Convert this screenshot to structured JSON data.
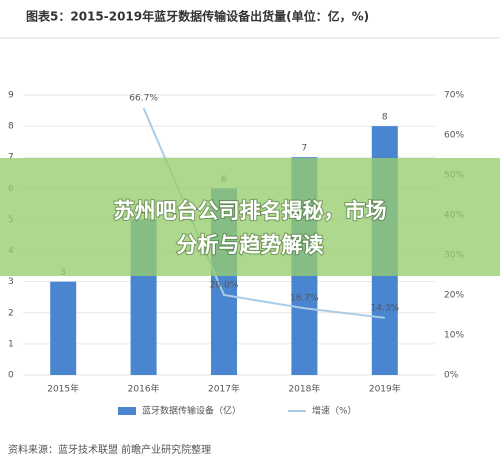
{
  "chart_data": {
    "type": "bar-line",
    "title": "图表5：2015-2019年蓝牙数据传输设备出货量(单位：亿，%)",
    "categories": [
      "2015年",
      "2016年",
      "2017年",
      "2018年",
      "2019年"
    ],
    "series": [
      {
        "name": "蓝牙数据传输设备（亿）",
        "type": "bar",
        "color": "#4a86d0",
        "values": [
          3,
          5,
          6,
          7,
          8
        ]
      },
      {
        "name": "增速（%）",
        "type": "line",
        "color": "#a9cde8",
        "axis": "y2",
        "values": [
          null,
          66.7,
          20,
          16.7,
          14.3
        ],
        "value_labels": [
          null,
          "66.7%",
          "20.0%",
          "16.7%",
          "14.3%"
        ]
      }
    ],
    "ylim": [
      0,
      9
    ],
    "yticks": [
      0,
      1,
      2,
      3,
      4,
      5,
      6,
      7,
      8,
      9
    ],
    "y2lim": [
      0,
      70
    ],
    "y2ticks": [
      {
        "value": 0,
        "label": "0%"
      },
      {
        "value": 10,
        "label": "10%"
      },
      {
        "value": 20,
        "label": "20%"
      },
      {
        "value": 30,
        "label": "30%"
      },
      {
        "value": 40,
        "label": "40%"
      },
      {
        "value": 50,
        "label": "50%"
      },
      {
        "value": 60,
        "label": "60%"
      },
      {
        "value": 70,
        "label": "70%"
      }
    ],
    "grid": true,
    "source": "资料来源：蓝牙技术联盟 前瞻产业研究院整理"
  },
  "banner": {
    "lines": [
      "苏州吧台公司排名揭秘，市场",
      "分析与趋势解读"
    ]
  }
}
